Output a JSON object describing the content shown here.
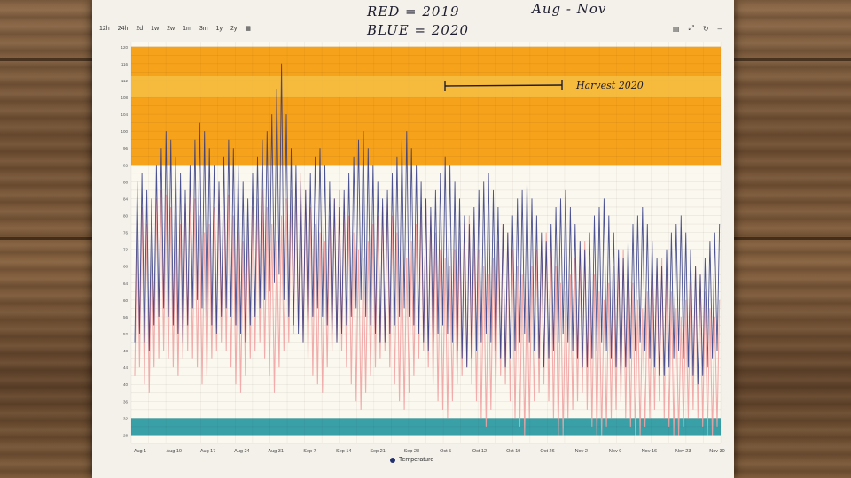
{
  "toolbar": {
    "ranges": [
      "12h",
      "24h",
      "2d",
      "1w",
      "2w",
      "1m",
      "3m",
      "1y",
      "2y"
    ],
    "icons": [
      "calendar-icon",
      "table-icon",
      "expand-icon",
      "refresh-icon",
      "minimize-icon"
    ]
  },
  "annotations": {
    "red": "RED = 2019",
    "blue": "BLUE = 2020",
    "period": "Aug - Nov",
    "harvest": "Harvest 2020"
  },
  "chart_data": {
    "type": "line",
    "title": "",
    "xlabel": "",
    "ylabel": "",
    "x_ticks": [
      "Aug 1",
      "Aug 10",
      "Aug 17",
      "Aug 24",
      "Aug 31",
      "Sep 7",
      "Sep 14",
      "Sep 21",
      "Sep 28",
      "Oct 5",
      "Oct 12",
      "Oct 19",
      "Oct 26",
      "Nov 2",
      "Nov 9",
      "Nov 16",
      "Nov 23",
      "Nov 30"
    ],
    "legend": [
      "Temperature"
    ],
    "legend_position": "bottom",
    "grid": true,
    "colors": {
      "red_2019": "#f0a3a3",
      "blue_2020": "#2c3580",
      "band_high": "#f7a21b",
      "band_low": "#3aa0a8",
      "harvest_band": "#f5c34a"
    },
    "bands": [
      {
        "label": "high",
        "from": 92,
        "to": 120
      },
      {
        "label": "low",
        "from": 28,
        "to": 32
      }
    ],
    "ylim": [
      26,
      121
    ],
    "series": [
      {
        "name": "RED = 2019",
        "daily_highs": [
          80,
          82,
          78,
          76,
          84,
          86,
          85,
          82,
          80,
          78,
          83,
          86,
          84,
          80,
          76,
          78,
          82,
          86,
          88,
          85,
          80,
          76,
          74,
          78,
          82,
          84,
          86,
          82,
          78,
          74,
          80,
          84,
          86,
          88,
          90,
          86,
          82,
          78,
          76,
          74,
          80,
          84,
          86,
          84,
          80,
          76,
          72,
          70,
          74,
          78,
          80,
          82,
          84,
          80,
          76,
          72,
          70,
          74,
          78,
          82,
          84,
          80,
          76,
          72,
          70,
          68,
          72,
          76,
          78,
          80,
          76,
          72,
          68,
          66,
          70,
          74,
          78,
          76,
          72,
          68,
          66,
          64,
          68,
          72,
          74,
          76,
          72,
          68,
          64,
          62,
          66,
          70,
          72,
          74,
          70,
          66,
          62,
          60,
          64,
          68,
          70,
          72,
          68,
          64,
          60,
          58,
          62,
          66,
          68,
          70,
          66,
          62,
          58,
          56,
          60,
          64,
          68,
          66,
          62,
          58,
          56,
          60
        ],
        "daily_lows": [
          42,
          44,
          40,
          38,
          44,
          46,
          48,
          46,
          44,
          42,
          46,
          48,
          46,
          44,
          40,
          42,
          46,
          48,
          50,
          48,
          44,
          40,
          38,
          42,
          46,
          48,
          50,
          46,
          42,
          38,
          44,
          48,
          50,
          52,
          54,
          50,
          46,
          42,
          40,
          38,
          44,
          48,
          50,
          48,
          44,
          40,
          36,
          34,
          38,
          42,
          44,
          46,
          48,
          44,
          40,
          36,
          34,
          38,
          42,
          46,
          48,
          44,
          40,
          36,
          34,
          32,
          36,
          40,
          42,
          44,
          40,
          36,
          32,
          30,
          34,
          38,
          42,
          40,
          36,
          32,
          30,
          28,
          32,
          36,
          38,
          40,
          36,
          32,
          28,
          28,
          32,
          34,
          36,
          38,
          34,
          30,
          28,
          28,
          30,
          32,
          34,
          36,
          32,
          30,
          28,
          28,
          30,
          32,
          34,
          36,
          32,
          30,
          28,
          28,
          30,
          32,
          34,
          32,
          30,
          28,
          28,
          30
        ]
      },
      {
        "name": "BLUE = 2020",
        "daily_highs": [
          88,
          90,
          86,
          84,
          92,
          96,
          100,
          98,
          94,
          90,
          86,
          92,
          98,
          102,
          100,
          96,
          92,
          88,
          94,
          98,
          96,
          92,
          88,
          84,
          90,
          94,
          98,
          100,
          104,
          110,
          116,
          104,
          96,
          92,
          88,
          86,
          90,
          94,
          96,
          92,
          88,
          84,
          82,
          86,
          90,
          94,
          98,
          100,
          96,
          92,
          88,
          84,
          86,
          90,
          94,
          98,
          100,
          96,
          92,
          88,
          84,
          82,
          86,
          90,
          94,
          92,
          88,
          84,
          80,
          78,
          82,
          86,
          88,
          90,
          86,
          82,
          78,
          76,
          80,
          84,
          86,
          88,
          84,
          80,
          76,
          74,
          78,
          82,
          84,
          86,
          82,
          78,
          74,
          72,
          76,
          80,
          82,
          84,
          80,
          76,
          72,
          70,
          74,
          78,
          80,
          82,
          78,
          74,
          70,
          68,
          72,
          76,
          78,
          80,
          76,
          72,
          68,
          66,
          70,
          74,
          76,
          78
        ],
        "daily_lows": [
          50,
          52,
          50,
          48,
          54,
          56,
          58,
          56,
          54,
          52,
          50,
          54,
          58,
          60,
          58,
          56,
          54,
          52,
          56,
          58,
          56,
          54,
          52,
          50,
          54,
          56,
          58,
          60,
          62,
          64,
          66,
          60,
          56,
          54,
          52,
          50,
          54,
          56,
          58,
          56,
          54,
          52,
          50,
          52,
          54,
          56,
          58,
          60,
          56,
          54,
          52,
          50,
          50,
          52,
          54,
          56,
          58,
          56,
          54,
          52,
          50,
          48,
          50,
          52,
          54,
          52,
          50,
          48,
          46,
          44,
          46,
          48,
          50,
          52,
          50,
          48,
          46,
          44,
          46,
          48,
          50,
          52,
          50,
          48,
          46,
          44,
          46,
          48,
          50,
          52,
          50,
          48,
          46,
          44,
          44,
          46,
          48,
          50,
          48,
          46,
          44,
          42,
          44,
          46,
          48,
          50,
          48,
          46,
          44,
          42,
          42,
          44,
          46,
          48,
          46,
          44,
          42,
          40,
          42,
          44,
          46,
          48
        ]
      }
    ]
  }
}
